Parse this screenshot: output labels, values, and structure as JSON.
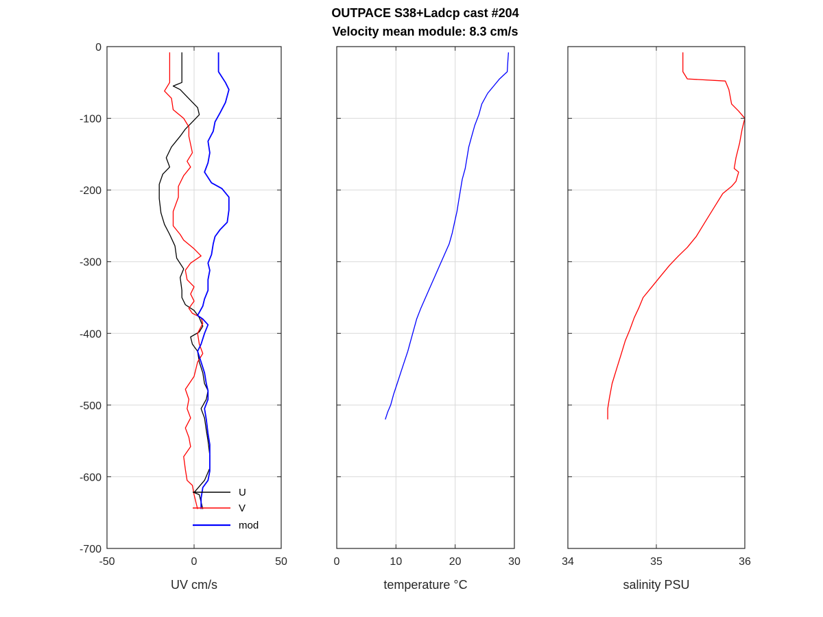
{
  "chart_data": {
    "title_lines": [
      "OUTPACE S38+Ladcp cast #204",
      "Velocity mean module:  8.3 cm/s"
    ],
    "panels": [
      {
        "id": "uv",
        "type": "line",
        "xlabel": "UV cm/s",
        "xlim": [
          -50,
          50
        ],
        "ylim": [
          -700,
          0
        ],
        "xticks": [
          -50,
          0,
          50
        ],
        "yticks": [
          0,
          -100,
          -200,
          -300,
          -400,
          -500,
          -600,
          -700
        ],
        "grid": true,
        "legend": {
          "placement": "bottom-right",
          "entries": [
            "U",
            "V",
            "mod"
          ]
        },
        "series": [
          {
            "name": "U",
            "color": "#000000",
            "points": [
              [
                -7,
                -8
              ],
              [
                -7,
                -50
              ],
              [
                -12,
                -55
              ],
              [
                -8,
                -60
              ],
              [
                -2,
                -75
              ],
              [
                2,
                -85
              ],
              [
                3,
                -95
              ],
              [
                -1,
                -105
              ],
              [
                -5,
                -115
              ],
              [
                -8,
                -125
              ],
              [
                -13,
                -140
              ],
              [
                -16,
                -155
              ],
              [
                -14,
                -168
              ],
              [
                -18,
                -178
              ],
              [
                -20,
                -192
              ],
              [
                -20,
                -212
              ],
              [
                -19,
                -232
              ],
              [
                -17,
                -248
              ],
              [
                -14,
                -262
              ],
              [
                -11,
                -278
              ],
              [
                -10,
                -295
              ],
              [
                -6,
                -310
              ],
              [
                -8,
                -322
              ],
              [
                -7,
                -340
              ],
              [
                -7,
                -350
              ],
              [
                -5,
                -360
              ],
              [
                0,
                -368
              ],
              [
                3,
                -378
              ],
              [
                5,
                -390
              ],
              [
                3,
                -398
              ],
              [
                -2,
                -405
              ],
              [
                -1,
                -415
              ],
              [
                2,
                -425
              ],
              [
                3,
                -440
              ],
              [
                5,
                -455
              ],
              [
                6,
                -470
              ],
              [
                8,
                -480
              ],
              [
                7,
                -492
              ],
              [
                4,
                -505
              ],
              [
                6,
                -518
              ],
              [
                7,
                -535
              ],
              [
                8,
                -550
              ],
              [
                9,
                -570
              ],
              [
                9,
                -588
              ],
              [
                6,
                -605
              ],
              [
                0,
                -622
              ],
              [
                3,
                -625
              ],
              [
                5,
                -645
              ]
            ]
          },
          {
            "name": "V",
            "color": "#ff0000",
            "points": [
              [
                -14,
                -8
              ],
              [
                -14,
                -50
              ],
              [
                -17,
                -62
              ],
              [
                -13,
                -72
              ],
              [
                -12,
                -88
              ],
              [
                -6,
                -100
              ],
              [
                -3,
                -112
              ],
              [
                -3,
                -125
              ],
              [
                -1,
                -148
              ],
              [
                -4,
                -160
              ],
              [
                -2,
                -168
              ],
              [
                -6,
                -180
              ],
              [
                -9,
                -195
              ],
              [
                -9,
                -210
              ],
              [
                -12,
                -230
              ],
              [
                -12,
                -250
              ],
              [
                -8,
                -262
              ],
              [
                -6,
                -270
              ],
              [
                0,
                -282
              ],
              [
                4,
                -292
              ],
              [
                -2,
                -302
              ],
              [
                -5,
                -312
              ],
              [
                -4,
                -325
              ],
              [
                0,
                -335
              ],
              [
                -2,
                -345
              ],
              [
                0,
                -355
              ],
              [
                -3,
                -365
              ],
              [
                -1,
                -372
              ],
              [
                4,
                -378
              ],
              [
                5,
                -386
              ],
              [
                2,
                -400
              ],
              [
                3,
                -415
              ],
              [
                5,
                -428
              ],
              [
                2,
                -440
              ],
              [
                0,
                -460
              ],
              [
                -5,
                -478
              ],
              [
                -3,
                -492
              ],
              [
                -4,
                -505
              ],
              [
                -2,
                -518
              ],
              [
                -5,
                -532
              ],
              [
                -3,
                -545
              ],
              [
                -2,
                -558
              ],
              [
                -6,
                -572
              ],
              [
                -5,
                -590
              ],
              [
                -4,
                -605
              ],
              [
                -1,
                -612
              ],
              [
                0,
                -625
              ],
              [
                2,
                -645
              ]
            ]
          },
          {
            "name": "mod",
            "color": "#0000ff",
            "points": [
              [
                14,
                -8
              ],
              [
                14,
                -35
              ],
              [
                18,
                -50
              ],
              [
                20,
                -60
              ],
              [
                18,
                -78
              ],
              [
                15,
                -92
              ],
              [
                12,
                -105
              ],
              [
                11,
                -118
              ],
              [
                8,
                -132
              ],
              [
                9,
                -148
              ],
              [
                8,
                -162
              ],
              [
                6,
                -175
              ],
              [
                10,
                -190
              ],
              [
                16,
                -198
              ],
              [
                20,
                -210
              ],
              [
                20,
                -228
              ],
              [
                19,
                -245
              ],
              [
                15,
                -255
              ],
              [
                12,
                -265
              ],
              [
                11,
                -275
              ],
              [
                10,
                -290
              ],
              [
                8,
                -302
              ],
              [
                9,
                -312
              ],
              [
                8,
                -325
              ],
              [
                8,
                -340
              ],
              [
                6,
                -352
              ],
              [
                5,
                -362
              ],
              [
                2,
                -375
              ],
              [
                5,
                -380
              ],
              [
                8,
                -388
              ],
              [
                6,
                -400
              ],
              [
                4,
                -415
              ],
              [
                2,
                -425
              ],
              [
                4,
                -440
              ],
              [
                6,
                -455
              ],
              [
                7,
                -470
              ],
              [
                8,
                -480
              ],
              [
                8,
                -492
              ],
              [
                6,
                -505
              ],
              [
                7,
                -520
              ],
              [
                8,
                -540
              ],
              [
                9,
                -555
              ],
              [
                9,
                -575
              ],
              [
                9,
                -592
              ],
              [
                8,
                -605
              ],
              [
                5,
                -615
              ],
              [
                4,
                -630
              ],
              [
                4,
                -645
              ]
            ]
          }
        ]
      },
      {
        "id": "temperature",
        "type": "line",
        "xlabel": "temperature °C",
        "xlim": [
          0,
          30
        ],
        "ylim": [
          -700,
          0
        ],
        "xticks": [
          0,
          10,
          20,
          30
        ],
        "yticks": [
          0,
          -100,
          -200,
          -300,
          -400,
          -500,
          -600,
          -700
        ],
        "grid": true,
        "series": [
          {
            "name": "",
            "color": "#0000ff",
            "points": [
              [
                29,
                -8
              ],
              [
                28.9,
                -20
              ],
              [
                28.8,
                -35
              ],
              [
                27.5,
                -45
              ],
              [
                26.5,
                -55
              ],
              [
                25.5,
                -65
              ],
              [
                24.5,
                -80
              ],
              [
                24,
                -95
              ],
              [
                23.3,
                -110
              ],
              [
                22.8,
                -125
              ],
              [
                22.3,
                -140
              ],
              [
                22,
                -155
              ],
              [
                21.7,
                -170
              ],
              [
                21.2,
                -185
              ],
              [
                20.9,
                -200
              ],
              [
                20.6,
                -215
              ],
              [
                20.3,
                -230
              ],
              [
                19.9,
                -245
              ],
              [
                19.5,
                -260
              ],
              [
                19,
                -275
              ],
              [
                18.2,
                -290
              ],
              [
                17.4,
                -305
              ],
              [
                16.6,
                -320
              ],
              [
                15.8,
                -335
              ],
              [
                15,
                -350
              ],
              [
                14.2,
                -365
              ],
              [
                13.5,
                -380
              ],
              [
                13,
                -395
              ],
              [
                12.5,
                -410
              ],
              [
                12,
                -425
              ],
              [
                11.4,
                -440
              ],
              [
                10.8,
                -455
              ],
              [
                10.2,
                -470
              ],
              [
                9.6,
                -485
              ],
              [
                9.1,
                -500
              ],
              [
                8.6,
                -510
              ],
              [
                8.2,
                -520
              ]
            ]
          }
        ]
      },
      {
        "id": "salinity",
        "type": "line",
        "xlabel": "salinity PSU",
        "xlim": [
          34,
          36
        ],
        "ylim": [
          -700,
          0
        ],
        "xticks": [
          34,
          35,
          36
        ],
        "yticks": [
          0,
          -100,
          -200,
          -300,
          -400,
          -500,
          -600,
          -700
        ],
        "grid": true,
        "series": [
          {
            "name": "",
            "color": "#ff0000",
            "points": [
              [
                35.3,
                -8
              ],
              [
                35.3,
                -35
              ],
              [
                35.35,
                -45
              ],
              [
                35.78,
                -48
              ],
              [
                35.82,
                -60
              ],
              [
                35.85,
                -80
              ],
              [
                35.93,
                -90
              ],
              [
                36,
                -100
              ],
              [
                35.97,
                -115
              ],
              [
                35.94,
                -135
              ],
              [
                35.9,
                -155
              ],
              [
                35.88,
                -170
              ],
              [
                35.93,
                -175
              ],
              [
                35.9,
                -188
              ],
              [
                35.85,
                -195
              ],
              [
                35.75,
                -205
              ],
              [
                35.65,
                -225
              ],
              [
                35.55,
                -245
              ],
              [
                35.45,
                -265
              ],
              [
                35.35,
                -280
              ],
              [
                35.25,
                -292
              ],
              [
                35.15,
                -305
              ],
              [
                35.05,
                -320
              ],
              [
                34.95,
                -335
              ],
              [
                34.85,
                -350
              ],
              [
                34.8,
                -365
              ],
              [
                34.75,
                -378
              ],
              [
                34.7,
                -395
              ],
              [
                34.65,
                -410
              ],
              [
                34.6,
                -430
              ],
              [
                34.55,
                -450
              ],
              [
                34.5,
                -470
              ],
              [
                34.47,
                -490
              ],
              [
                34.45,
                -505
              ],
              [
                34.45,
                -520
              ]
            ]
          }
        ]
      }
    ]
  }
}
